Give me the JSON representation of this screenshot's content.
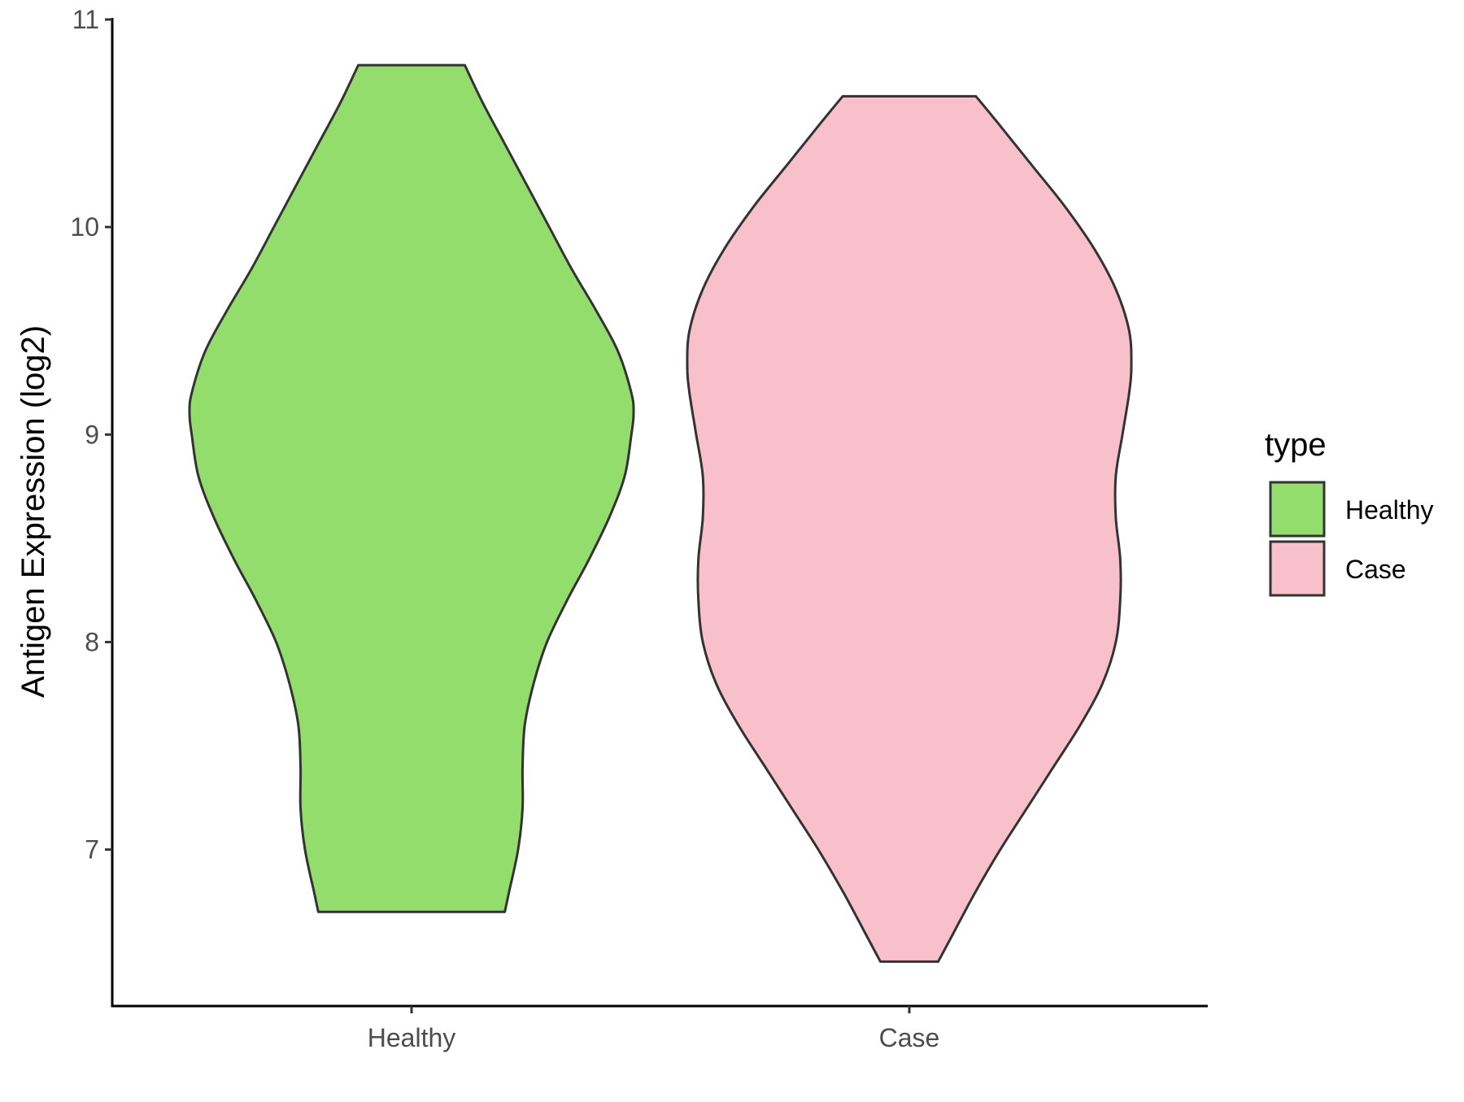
{
  "chart_data": {
    "type": "violin",
    "title": "",
    "xlabel": "",
    "ylabel": "Antigen Expression (log2)",
    "categories": [
      "Healthy",
      "Case"
    ],
    "ylim": [
      6.25,
      11.0
    ],
    "yticks": [
      7,
      8,
      9,
      10,
      11
    ],
    "grid": false,
    "series": [
      {
        "name": "Healthy",
        "color": "#93DD6C",
        "min": 6.7,
        "max": 10.78,
        "density_profile": [
          [
            6.7,
            0.42
          ],
          [
            6.8,
            0.44
          ],
          [
            7.0,
            0.48
          ],
          [
            7.2,
            0.5
          ],
          [
            7.4,
            0.5
          ],
          [
            7.6,
            0.51
          ],
          [
            7.8,
            0.55
          ],
          [
            8.0,
            0.61
          ],
          [
            8.2,
            0.7
          ],
          [
            8.4,
            0.8
          ],
          [
            8.6,
            0.89
          ],
          [
            8.8,
            0.96
          ],
          [
            9.0,
            0.99
          ],
          [
            9.1,
            1.0
          ],
          [
            9.2,
            0.99
          ],
          [
            9.4,
            0.93
          ],
          [
            9.6,
            0.83
          ],
          [
            9.8,
            0.72
          ],
          [
            10.0,
            0.62
          ],
          [
            10.2,
            0.52
          ],
          [
            10.4,
            0.42
          ],
          [
            10.6,
            0.32
          ],
          [
            10.78,
            0.24
          ]
        ]
      },
      {
        "name": "Case",
        "color": "#F8C0CB",
        "min": 6.46,
        "max": 10.63,
        "density_profile": [
          [
            6.46,
            0.13
          ],
          [
            6.6,
            0.2
          ],
          [
            6.8,
            0.3
          ],
          [
            7.0,
            0.41
          ],
          [
            7.2,
            0.53
          ],
          [
            7.4,
            0.65
          ],
          [
            7.6,
            0.77
          ],
          [
            7.8,
            0.87
          ],
          [
            8.0,
            0.93
          ],
          [
            8.2,
            0.95
          ],
          [
            8.4,
            0.95
          ],
          [
            8.6,
            0.93
          ],
          [
            8.8,
            0.93
          ],
          [
            9.0,
            0.96
          ],
          [
            9.2,
            0.99
          ],
          [
            9.33,
            1.0
          ],
          [
            9.5,
            0.99
          ],
          [
            9.7,
            0.93
          ],
          [
            9.9,
            0.83
          ],
          [
            10.1,
            0.7
          ],
          [
            10.3,
            0.55
          ],
          [
            10.5,
            0.4
          ],
          [
            10.63,
            0.3
          ]
        ]
      }
    ],
    "legend": {
      "title": "type",
      "position": "right",
      "entries": [
        "Healthy",
        "Case"
      ]
    },
    "outline_color": "#333333"
  }
}
